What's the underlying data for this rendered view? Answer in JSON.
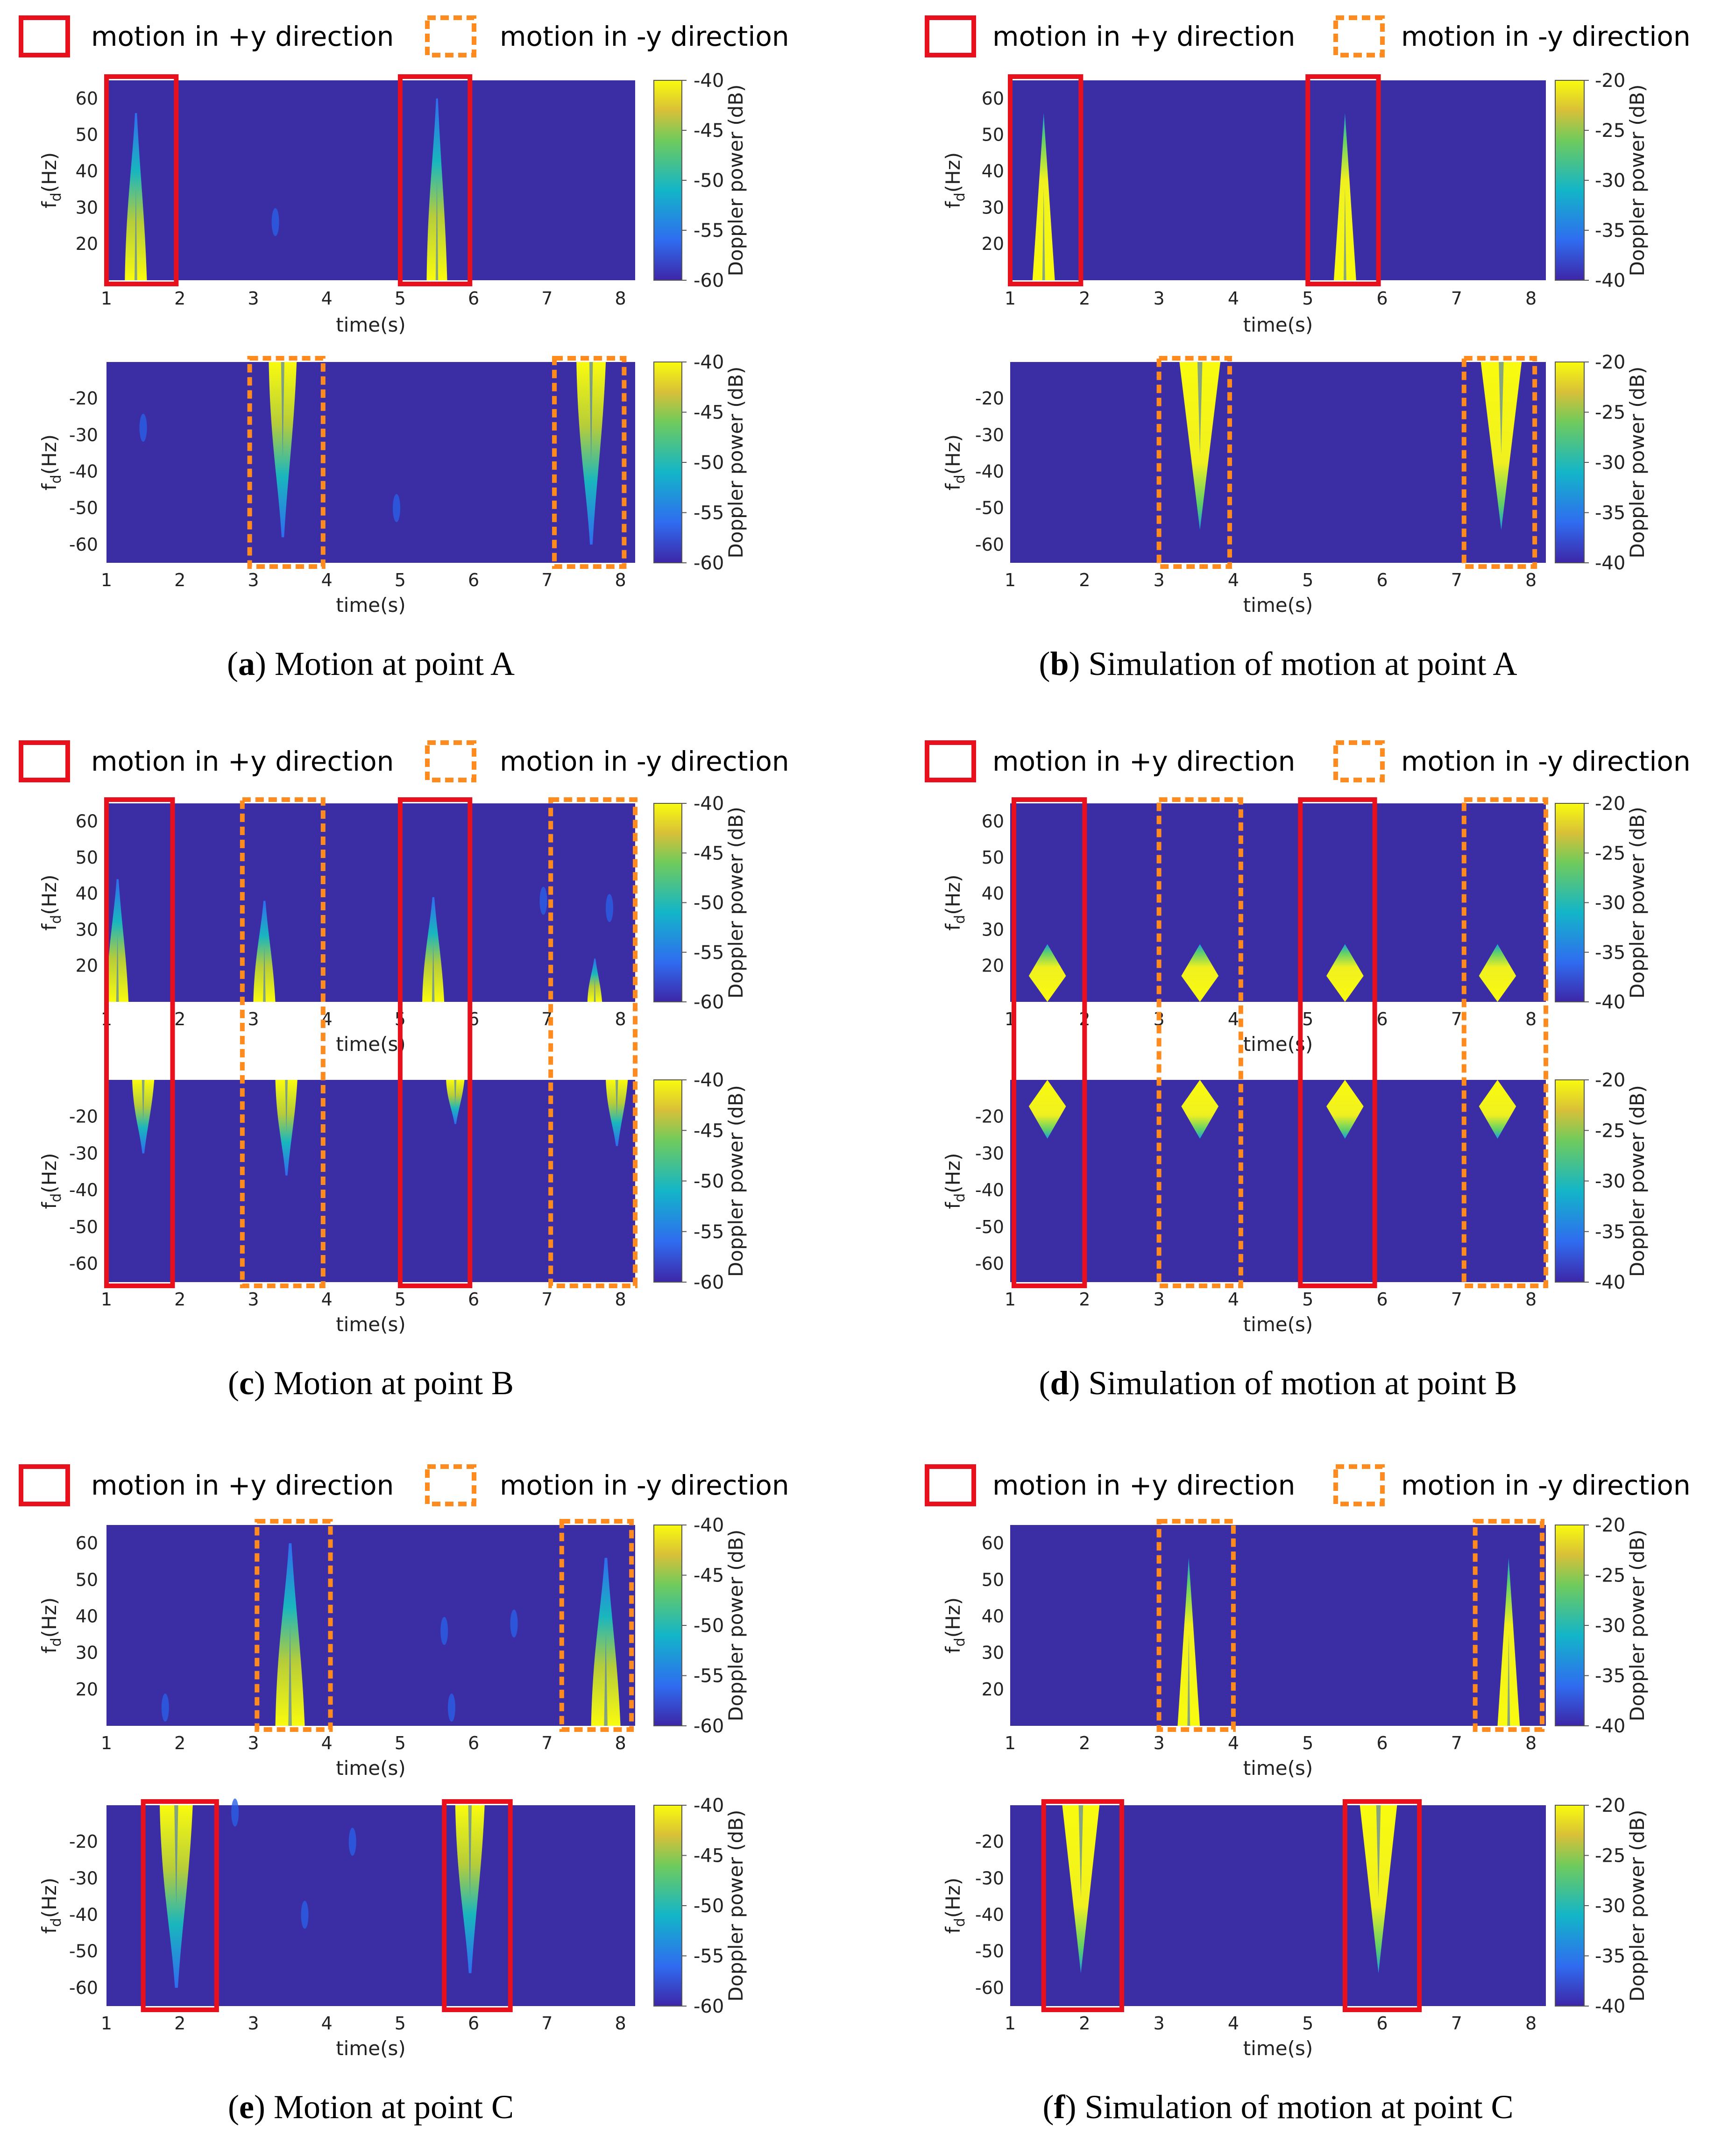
{
  "legend": {
    "plus_label": "motion in +y direction",
    "minus_label": "motion in -y direction"
  },
  "colors": {
    "plot_bg": "#3b2ea4",
    "plus_box": "#e8101c",
    "minus_box": "#ff8a1e"
  },
  "common": {
    "xlabel": "time(s)",
    "ylabel_main": "f",
    "ylabel_sub": "d",
    "ylabel_unit": "(Hz)",
    "colorbar_label": "Doppler power (dB)",
    "x_range": [
      1,
      8.2
    ],
    "x_ticks": [
      1,
      2,
      3,
      4,
      5,
      6,
      7,
      8
    ],
    "pos_range": [
      10,
      65
    ],
    "pos_ticks": [
      20,
      30,
      40,
      50,
      60
    ],
    "neg_range": [
      -65,
      -10
    ],
    "neg_ticks": [
      -20,
      -30,
      -40,
      -50,
      -60
    ]
  },
  "chart_data": [
    {
      "type": "heatmap",
      "id": "a",
      "caption_letter": "a",
      "caption_text": "Motion at point A",
      "colorbar_ticks": [
        -40,
        -45,
        -50,
        -55,
        -60
      ],
      "pos_boxes": [
        {
          "t0": 1.0,
          "t1": 1.95,
          "dir": "+"
        },
        {
          "t0": 5.0,
          "t1": 5.95,
          "dir": "+"
        }
      ],
      "neg_boxes": [
        {
          "t0": 2.95,
          "t1": 3.95,
          "dir": "-"
        },
        {
          "t0": 7.1,
          "t1": 8.05,
          "dir": "-"
        }
      ],
      "pos_blobs": [
        {
          "t": 1.4,
          "w": 0.3,
          "fmax": 56,
          "style": "measured"
        },
        {
          "t": 5.5,
          "w": 0.28,
          "fmax": 60,
          "style": "measured"
        }
      ],
      "neg_blobs": [
        {
          "t": 3.4,
          "w": 0.38,
          "fmax": 58,
          "style": "measured"
        },
        {
          "t": 7.6,
          "w": 0.4,
          "fmax": 60,
          "style": "measured"
        }
      ],
      "pos_specks": [
        {
          "t": 3.3,
          "f": 26
        }
      ],
      "neg_specks": [
        {
          "t": 1.5,
          "f": -28
        },
        {
          "t": 4.95,
          "f": -50
        }
      ]
    },
    {
      "type": "heatmap",
      "id": "b",
      "caption_letter": "b",
      "caption_text": "Simulation of motion at point A",
      "colorbar_ticks": [
        -20,
        -25,
        -30,
        -35,
        -40
      ],
      "pos_boxes": [
        {
          "t0": 1.0,
          "t1": 1.95,
          "dir": "+"
        },
        {
          "t0": 5.0,
          "t1": 5.95,
          "dir": "+"
        }
      ],
      "neg_boxes": [
        {
          "t0": 3.0,
          "t1": 3.95,
          "dir": "-"
        },
        {
          "t0": 7.1,
          "t1": 8.05,
          "dir": "-"
        }
      ],
      "pos_blobs": [
        {
          "t": 1.45,
          "w": 0.3,
          "fmax": 56,
          "style": "sim"
        },
        {
          "t": 5.5,
          "w": 0.3,
          "fmax": 56,
          "style": "sim"
        }
      ],
      "neg_blobs": [
        {
          "t": 3.55,
          "w": 0.55,
          "fmax": 56,
          "style": "sim"
        },
        {
          "t": 7.6,
          "w": 0.55,
          "fmax": 56,
          "style": "sim"
        }
      ],
      "pos_specks": [],
      "neg_specks": []
    },
    {
      "type": "heatmap",
      "id": "c",
      "caption_letter": "c",
      "caption_text": "Motion at point B",
      "colorbar_ticks": [
        -40,
        -45,
        -50,
        -55,
        -60
      ],
      "span_boxes": [
        {
          "t0": 1.0,
          "t1": 1.9,
          "dir": "+"
        },
        {
          "t0": 2.85,
          "t1": 3.95,
          "dir": "-"
        },
        {
          "t0": 5.0,
          "t1": 5.95,
          "dir": "+"
        },
        {
          "t0": 7.05,
          "t1": 8.2,
          "dir": "-"
        }
      ],
      "pos_blobs": [
        {
          "t": 1.15,
          "w": 0.3,
          "fmax": 44,
          "style": "measured"
        },
        {
          "t": 3.15,
          "w": 0.3,
          "fmax": 38,
          "style": "measured"
        },
        {
          "t": 5.45,
          "w": 0.3,
          "fmax": 39,
          "style": "measured"
        },
        {
          "t": 7.65,
          "w": 0.2,
          "fmax": 22,
          "style": "measured"
        }
      ],
      "neg_blobs": [
        {
          "t": 1.5,
          "w": 0.3,
          "fmax": 30,
          "style": "measured"
        },
        {
          "t": 3.45,
          "w": 0.3,
          "fmax": 36,
          "style": "measured"
        },
        {
          "t": 5.75,
          "w": 0.25,
          "fmax": 22,
          "style": "measured"
        },
        {
          "t": 7.95,
          "w": 0.3,
          "fmax": 28,
          "style": "measured"
        }
      ],
      "pos_specks": [
        {
          "t": 6.95,
          "f": 38
        },
        {
          "t": 7.85,
          "f": 36
        }
      ],
      "neg_specks": []
    },
    {
      "type": "heatmap",
      "id": "d",
      "caption_letter": "d",
      "caption_text": "Simulation of motion at point B",
      "colorbar_ticks": [
        -20,
        -25,
        -30,
        -35,
        -40
      ],
      "span_boxes": [
        {
          "t0": 1.05,
          "t1": 2.0,
          "dir": "+"
        },
        {
          "t0": 3.0,
          "t1": 4.1,
          "dir": "-"
        },
        {
          "t0": 4.9,
          "t1": 5.9,
          "dir": "+"
        },
        {
          "t0": 7.1,
          "t1": 8.2,
          "dir": "-"
        }
      ],
      "pos_blobs": [
        {
          "t": 1.5,
          "w": 0.5,
          "fmax": 26,
          "style": "diamond"
        },
        {
          "t": 3.55,
          "w": 0.5,
          "fmax": 26,
          "style": "diamond"
        },
        {
          "t": 5.5,
          "w": 0.5,
          "fmax": 26,
          "style": "diamond"
        },
        {
          "t": 7.55,
          "w": 0.5,
          "fmax": 26,
          "style": "diamond"
        }
      ],
      "neg_blobs": [
        {
          "t": 1.5,
          "w": 0.5,
          "fmax": 26,
          "style": "diamond"
        },
        {
          "t": 3.55,
          "w": 0.5,
          "fmax": 26,
          "style": "diamond"
        },
        {
          "t": 5.5,
          "w": 0.5,
          "fmax": 26,
          "style": "diamond"
        },
        {
          "t": 7.55,
          "w": 0.5,
          "fmax": 26,
          "style": "diamond"
        }
      ],
      "pos_specks": [],
      "neg_specks": []
    },
    {
      "type": "heatmap",
      "id": "e",
      "caption_letter": "e",
      "caption_text": "Motion at point C",
      "colorbar_ticks": [
        -40,
        -45,
        -50,
        -55,
        -60
      ],
      "pos_boxes": [
        {
          "t0": 3.05,
          "t1": 4.05,
          "dir": "-"
        },
        {
          "t0": 7.2,
          "t1": 8.15,
          "dir": "-"
        }
      ],
      "neg_boxes": [
        {
          "t0": 1.5,
          "t1": 2.5,
          "dir": "+"
        },
        {
          "t0": 5.6,
          "t1": 6.5,
          "dir": "+"
        }
      ],
      "pos_blobs": [
        {
          "t": 3.5,
          "w": 0.4,
          "fmax": 60,
          "style": "measured"
        },
        {
          "t": 7.8,
          "w": 0.4,
          "fmax": 56,
          "style": "measured"
        }
      ],
      "neg_blobs": [
        {
          "t": 1.95,
          "w": 0.45,
          "fmax": 60,
          "style": "measured"
        },
        {
          "t": 5.95,
          "w": 0.4,
          "fmax": 56,
          "style": "measured"
        }
      ],
      "pos_specks": [
        {
          "t": 1.8,
          "f": 15
        },
        {
          "t": 5.7,
          "f": 15
        },
        {
          "t": 5.6,
          "f": 36
        },
        {
          "t": 6.55,
          "f": 38
        }
      ],
      "neg_specks": [
        {
          "t": 2.75,
          "f": -12
        },
        {
          "t": 3.7,
          "f": -40
        },
        {
          "t": 4.35,
          "f": -20
        }
      ]
    },
    {
      "type": "heatmap",
      "id": "f",
      "caption_letter": "f",
      "caption_text": "Simulation of motion at point C",
      "colorbar_ticks": [
        -20,
        -25,
        -30,
        -35,
        -40
      ],
      "pos_boxes": [
        {
          "t0": 3.0,
          "t1": 4.0,
          "dir": "-"
        },
        {
          "t0": 7.25,
          "t1": 8.15,
          "dir": "-"
        }
      ],
      "neg_boxes": [
        {
          "t0": 1.45,
          "t1": 2.5,
          "dir": "+"
        },
        {
          "t0": 5.5,
          "t1": 6.5,
          "dir": "+"
        }
      ],
      "pos_blobs": [
        {
          "t": 3.4,
          "w": 0.3,
          "fmax": 56,
          "style": "sim"
        },
        {
          "t": 7.7,
          "w": 0.3,
          "fmax": 56,
          "style": "sim"
        }
      ],
      "neg_blobs": [
        {
          "t": 1.95,
          "w": 0.5,
          "fmax": 56,
          "style": "sim"
        },
        {
          "t": 5.95,
          "w": 0.5,
          "fmax": 56,
          "style": "sim"
        }
      ],
      "pos_specks": [],
      "neg_specks": []
    }
  ]
}
